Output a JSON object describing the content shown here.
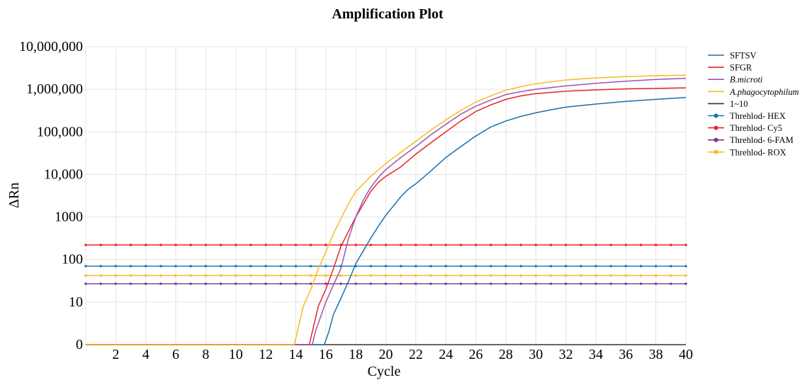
{
  "chart_data": {
    "type": "line",
    "title": "Amplification Plot",
    "xlabel": "Cycle",
    "ylabel": "ΔRn",
    "yscale": "log",
    "xlim": [
      0,
      40
    ],
    "x_ticks": [
      2,
      4,
      6,
      8,
      10,
      12,
      14,
      16,
      18,
      20,
      22,
      24,
      26,
      28,
      30,
      32,
      34,
      36,
      38,
      40
    ],
    "y_ticks": [
      {
        "value": 1,
        "label": "0"
      },
      {
        "value": 10,
        "label": "10"
      },
      {
        "value": 100,
        "label": "100"
      },
      {
        "value": 1000,
        "label": "1000"
      },
      {
        "value": 10000,
        "label": "10,000"
      },
      {
        "value": 100000,
        "label": "100,000"
      },
      {
        "value": 1000000,
        "label": "1,000,000"
      },
      {
        "value": 10000000,
        "label": "10,000,000"
      }
    ],
    "ylim": [
      1,
      10000000
    ],
    "grid": true,
    "legend_position": "right",
    "series": [
      {
        "name": "SFTSV",
        "kind": "curve",
        "color": "#1a6fad",
        "italic": false,
        "points": [
          [
            0,
            1
          ],
          [
            15.9,
            1
          ],
          [
            16.2,
            2
          ],
          [
            16.5,
            5
          ],
          [
            17,
            12
          ],
          [
            17.5,
            30
          ],
          [
            18,
            80
          ],
          [
            18.5,
            160
          ],
          [
            19,
            320
          ],
          [
            19.5,
            600
          ],
          [
            20,
            1100
          ],
          [
            20.5,
            1800
          ],
          [
            21,
            3000
          ],
          [
            21.5,
            4500
          ],
          [
            22,
            6000
          ],
          [
            23,
            12000
          ],
          [
            24,
            25000
          ],
          [
            25,
            45000
          ],
          [
            26,
            80000
          ],
          [
            27,
            130000
          ],
          [
            28,
            180000
          ],
          [
            29,
            230000
          ],
          [
            30,
            280000
          ],
          [
            31,
            330000
          ],
          [
            32,
            380000
          ],
          [
            34,
            450000
          ],
          [
            36,
            520000
          ],
          [
            38,
            580000
          ],
          [
            40,
            640000
          ]
        ]
      },
      {
        "name": "SFGR",
        "kind": "curve",
        "color": "#e8242c",
        "italic": false,
        "points": [
          [
            0,
            1
          ],
          [
            14.9,
            1
          ],
          [
            15.1,
            2
          ],
          [
            15.5,
            8
          ],
          [
            16,
            20
          ],
          [
            16.5,
            60
          ],
          [
            17,
            200
          ],
          [
            17.5,
            450
          ],
          [
            18,
            1000
          ],
          [
            18.5,
            2000
          ],
          [
            19,
            4000
          ],
          [
            19.5,
            6500
          ],
          [
            20,
            9000
          ],
          [
            21,
            15000
          ],
          [
            22,
            30000
          ],
          [
            23,
            55000
          ],
          [
            24,
            100000
          ],
          [
            25,
            180000
          ],
          [
            26,
            300000
          ],
          [
            27,
            430000
          ],
          [
            28,
            580000
          ],
          [
            29,
            700000
          ],
          [
            30,
            790000
          ],
          [
            32,
            900000
          ],
          [
            34,
            970000
          ],
          [
            36,
            1020000
          ],
          [
            38,
            1050000
          ],
          [
            40,
            1080000
          ]
        ]
      },
      {
        "name": "B.microti",
        "kind": "curve",
        "color": "#9a55b0",
        "italic": true,
        "points": [
          [
            0,
            1
          ],
          [
            15.1,
            1
          ],
          [
            15.3,
            2
          ],
          [
            15.7,
            5
          ],
          [
            16,
            10
          ],
          [
            16.5,
            25
          ],
          [
            17,
            60
          ],
          [
            17.5,
            300
          ],
          [
            18,
            1000
          ],
          [
            18.5,
            2500
          ],
          [
            19,
            5000
          ],
          [
            19.5,
            8500
          ],
          [
            20,
            13000
          ],
          [
            21,
            25000
          ],
          [
            22,
            45000
          ],
          [
            23,
            85000
          ],
          [
            24,
            150000
          ],
          [
            25,
            260000
          ],
          [
            26,
            400000
          ],
          [
            27,
            560000
          ],
          [
            28,
            750000
          ],
          [
            29,
            880000
          ],
          [
            30,
            1000000
          ],
          [
            32,
            1200000
          ],
          [
            34,
            1380000
          ],
          [
            36,
            1550000
          ],
          [
            38,
            1700000
          ],
          [
            40,
            1800000
          ]
        ]
      },
      {
        "name": "A.phagocytophilum",
        "kind": "curve",
        "color": "#f6bb21",
        "italic": true,
        "points": [
          [
            0,
            1
          ],
          [
            13.9,
            1
          ],
          [
            14.1,
            2
          ],
          [
            14.5,
            8
          ],
          [
            15,
            20
          ],
          [
            15.5,
            60
          ],
          [
            16,
            150
          ],
          [
            16.5,
            400
          ],
          [
            17,
            900
          ],
          [
            17.5,
            2000
          ],
          [
            18,
            4000
          ],
          [
            19,
            9000
          ],
          [
            20,
            18000
          ],
          [
            21,
            33000
          ],
          [
            22,
            60000
          ],
          [
            23,
            110000
          ],
          [
            24,
            190000
          ],
          [
            25,
            320000
          ],
          [
            26,
            500000
          ],
          [
            27,
            700000
          ],
          [
            28,
            950000
          ],
          [
            29,
            1150000
          ],
          [
            30,
            1350000
          ],
          [
            32,
            1650000
          ],
          [
            34,
            1850000
          ],
          [
            36,
            1980000
          ],
          [
            38,
            2080000
          ],
          [
            40,
            2150000
          ]
        ]
      },
      {
        "name": "1~10",
        "kind": "baseline",
        "color": "#333333",
        "italic": false,
        "value": 1
      },
      {
        "name": "Threhlod- HEX",
        "kind": "threshold",
        "color": "#1a6fad",
        "italic": false,
        "value": 70
      },
      {
        "name": "Threhlod- Cy5",
        "kind": "threshold",
        "color": "#e8242c",
        "italic": false,
        "value": 220
      },
      {
        "name": "Threhlod- 6-FAM",
        "kind": "threshold",
        "color": "#7b3294",
        "italic": false,
        "value": 27
      },
      {
        "name": "Threhlod- ROX",
        "kind": "threshold",
        "color": "#f6bb21",
        "italic": false,
        "value": 42
      }
    ]
  }
}
